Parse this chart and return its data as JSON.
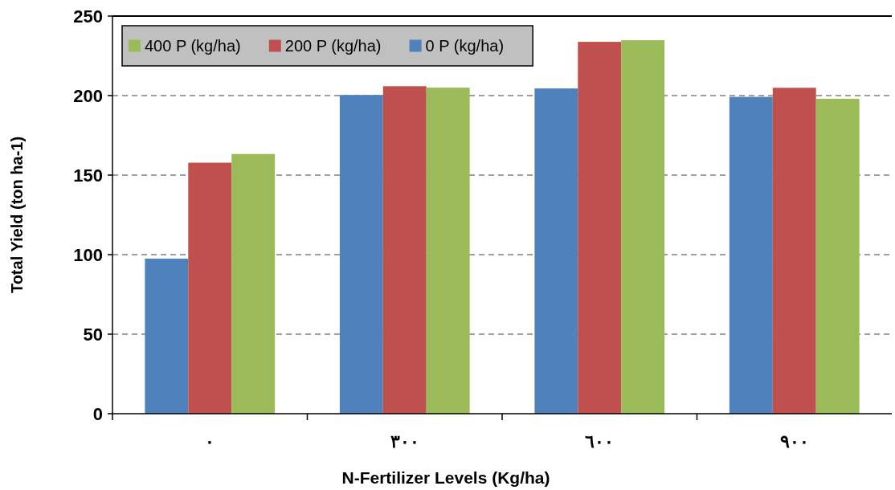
{
  "chart_data": {
    "type": "bar",
    "xlabel": "N-Fertilizer  Levels (Kg/ha)",
    "ylabel": "Total Yield (ton ha-1)",
    "categories": [
      "٠",
      "٣٠٠",
      "٦٠٠",
      "٩٠٠"
    ],
    "series": [
      {
        "name": "0 P (kg/ha)",
        "color": "#4f81bd",
        "values": [
          97.5,
          200.4,
          204.5,
          199.2
        ]
      },
      {
        "name": "200 P (kg/ha)",
        "color": "#c0504d",
        "values": [
          157.8,
          205.9,
          233.8,
          204.9
        ]
      },
      {
        "name": "400 P (kg/ha)",
        "color": "#9bbb59",
        "values": [
          163.3,
          205,
          234.8,
          198
        ]
      }
    ],
    "ylim": [
      0,
      250
    ],
    "yticks": [
      0,
      50,
      100,
      150,
      200,
      250
    ],
    "grid": "y",
    "legend": "top left"
  }
}
